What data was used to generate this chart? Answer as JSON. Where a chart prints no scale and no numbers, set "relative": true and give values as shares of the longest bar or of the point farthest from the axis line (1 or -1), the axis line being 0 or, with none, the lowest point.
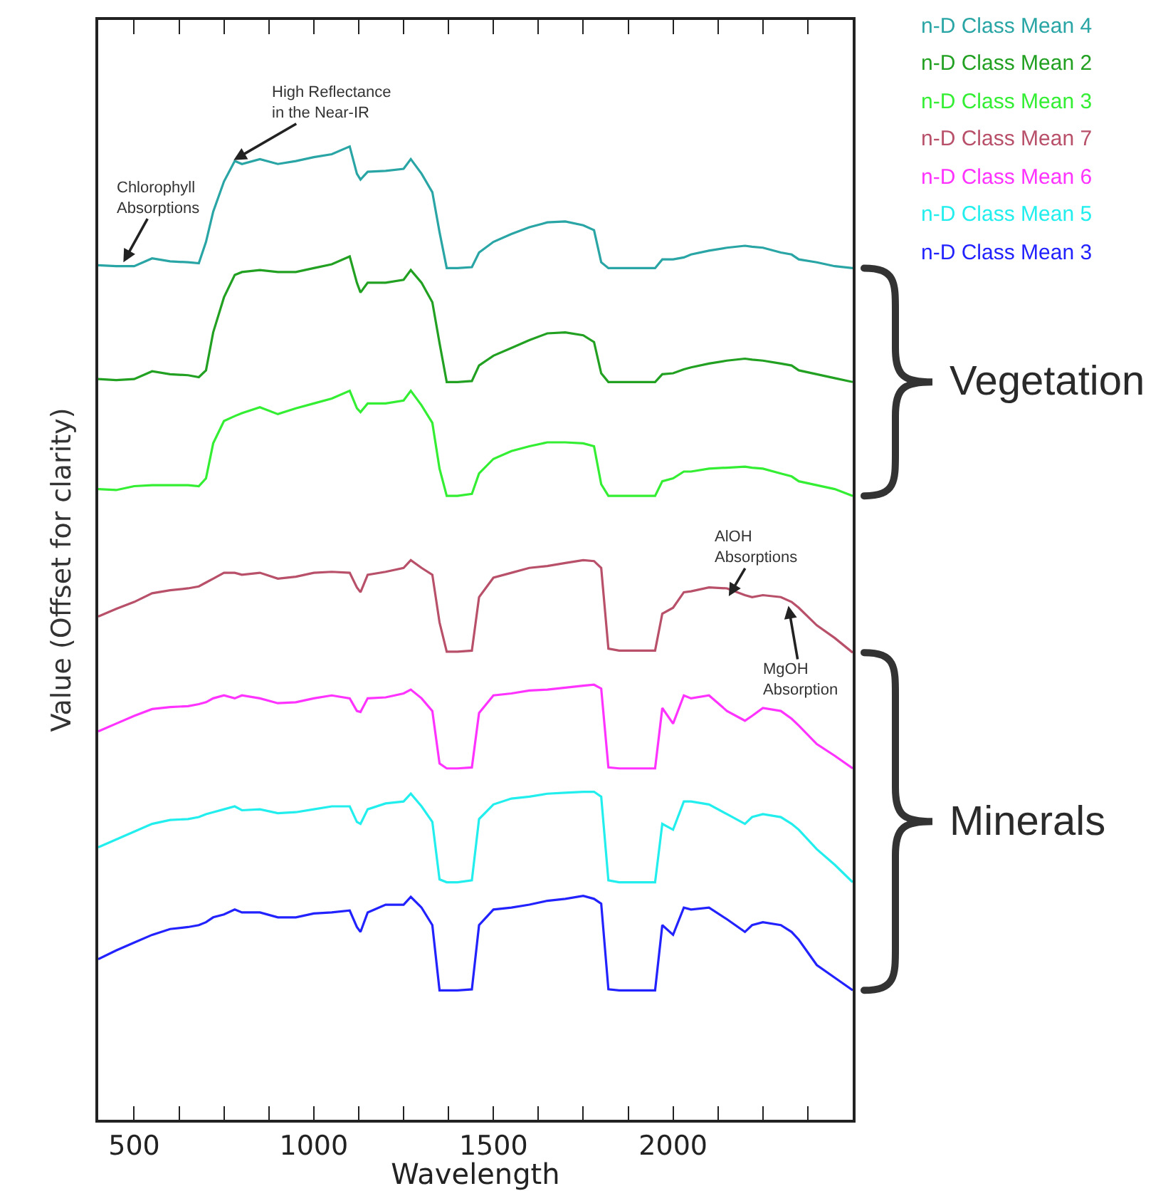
{
  "chart_data": {
    "type": "line",
    "relative": true,
    "xlabel": "Wavelength",
    "ylabel": "Value (Offset for clarity)",
    "xlim": [
      400,
      2500
    ],
    "xticks": [
      500,
      {
        "value": 625,
        "label": null
      },
      {
        "value": 750,
        "label": null
      },
      {
        "value": 875,
        "label": null
      },
      1000,
      {
        "value": 1125,
        "label": null
      },
      {
        "value": 1250,
        "label": null
      },
      {
        "value": 1375,
        "label": null
      },
      1500,
      {
        "value": 1625,
        "label": null
      },
      {
        "value": 1750,
        "label": null
      },
      {
        "value": 1875,
        "label": null
      },
      2000,
      {
        "value": 2125,
        "label": null
      },
      {
        "value": 2250,
        "label": null
      },
      {
        "value": 2375,
        "label": null
      }
    ],
    "grid": false,
    "legend": "top right",
    "marker": "none",
    "line_style": "solid",
    "x": [
      400,
      450,
      500,
      550,
      600,
      650,
      680,
      700,
      720,
      750,
      780,
      800,
      850,
      900,
      950,
      1000,
      1050,
      1100,
      1120,
      1130,
      1150,
      1200,
      1250,
      1270,
      1300,
      1330,
      1350,
      1370,
      1400,
      1440,
      1460,
      1500,
      1550,
      1600,
      1650,
      1700,
      1750,
      1780,
      1800,
      1820,
      1850,
      1900,
      1950,
      1970,
      2000,
      2030,
      2050,
      2100,
      2150,
      2200,
      2220,
      2250,
      2300,
      2330,
      2350,
      2400,
      2450,
      2500
    ],
    "series": [
      {
        "name": "n-D Class Mean 4",
        "color": "#2aa5a5",
        "values": [
          0.878,
          0.877,
          0.877,
          0.885,
          0.882,
          0.881,
          0.88,
          0.902,
          0.933,
          0.964,
          0.985,
          0.982,
          0.987,
          0.982,
          0.985,
          0.989,
          0.992,
          1,
          0.972,
          0.966,
          0.974,
          0.975,
          0.977,
          0.987,
          0.972,
          0.953,
          0.912,
          0.875,
          0.875,
          0.876,
          0.891,
          0.902,
          0.91,
          0.917,
          0.922,
          0.923,
          0.919,
          0.914,
          0.881,
          0.875,
          0.875,
          0.875,
          0.875,
          0.884,
          0.884,
          0.886,
          0.889,
          0.893,
          0.896,
          0.898,
          0.897,
          0.896,
          0.891,
          0.889,
          0.884,
          0.881,
          0.877,
          0.875
        ]
      },
      {
        "name": "n-D Class Mean 2",
        "color": "#22a022",
        "values": [
          0.761,
          0.76,
          0.761,
          0.769,
          0.766,
          0.765,
          0.763,
          0.77,
          0.809,
          0.845,
          0.868,
          0.871,
          0.873,
          0.871,
          0.871,
          0.875,
          0.879,
          0.887,
          0.86,
          0.85,
          0.86,
          0.86,
          0.863,
          0.873,
          0.86,
          0.84,
          0.798,
          0.758,
          0.758,
          0.759,
          0.775,
          0.785,
          0.793,
          0.801,
          0.808,
          0.809,
          0.806,
          0.799,
          0.767,
          0.758,
          0.758,
          0.758,
          0.758,
          0.766,
          0.767,
          0.771,
          0.773,
          0.777,
          0.78,
          0.782,
          0.781,
          0.78,
          0.777,
          0.775,
          0.77,
          0.766,
          0.762,
          0.758
        ]
      },
      {
        "name": "n-D Class Mean 3",
        "color": "#33ee33",
        "values": [
          0.648,
          0.647,
          0.651,
          0.652,
          0.652,
          0.652,
          0.651,
          0.659,
          0.695,
          0.718,
          0.723,
          0.726,
          0.732,
          0.725,
          0.731,
          0.736,
          0.741,
          0.749,
          0.731,
          0.727,
          0.736,
          0.736,
          0.739,
          0.749,
          0.734,
          0.716,
          0.669,
          0.641,
          0.641,
          0.643,
          0.664,
          0.679,
          0.687,
          0.692,
          0.696,
          0.696,
          0.695,
          0.692,
          0.653,
          0.641,
          0.641,
          0.641,
          0.641,
          0.656,
          0.659,
          0.666,
          0.666,
          0.669,
          0.67,
          0.671,
          0.67,
          0.669,
          0.664,
          0.661,
          0.656,
          0.652,
          0.648,
          0.641
        ]
      },
      {
        "name": "n-D Class Mean 7",
        "color": "#b8506a",
        "values": [
          0.517,
          0.525,
          0.532,
          0.541,
          0.544,
          0.546,
          0.548,
          0.552,
          0.556,
          0.562,
          0.562,
          0.56,
          0.562,
          0.556,
          0.558,
          0.562,
          0.563,
          0.562,
          0.547,
          0.542,
          0.56,
          0.563,
          0.567,
          0.575,
          0.567,
          0.56,
          0.511,
          0.481,
          0.481,
          0.482,
          0.537,
          0.557,
          0.562,
          0.567,
          0.569,
          0.572,
          0.575,
          0.574,
          0.567,
          0.484,
          0.482,
          0.482,
          0.482,
          0.52,
          0.526,
          0.542,
          0.543,
          0.547,
          0.546,
          0.539,
          0.537,
          0.539,
          0.537,
          0.532,
          0.526,
          0.508,
          0.495,
          0.48
        ]
      },
      {
        "name": "n-D Class Mean 6",
        "color": "#ff33ff",
        "values": [
          0.399,
          0.407,
          0.415,
          0.422,
          0.424,
          0.425,
          0.427,
          0.429,
          0.433,
          0.436,
          0.433,
          0.436,
          0.433,
          0.428,
          0.429,
          0.433,
          0.436,
          0.433,
          0.42,
          0.419,
          0.433,
          0.434,
          0.438,
          0.442,
          0.433,
          0.42,
          0.366,
          0.361,
          0.361,
          0.362,
          0.418,
          0.436,
          0.438,
          0.441,
          0.442,
          0.444,
          0.446,
          0.447,
          0.443,
          0.362,
          0.361,
          0.361,
          0.361,
          0.423,
          0.407,
          0.436,
          0.433,
          0.436,
          0.42,
          0.41,
          0.415,
          0.423,
          0.42,
          0.412,
          0.405,
          0.386,
          0.374,
          0.361
        ]
      },
      {
        "name": "n-D Class Mean 5",
        "color": "#22eeee",
        "values": [
          0.28,
          0.288,
          0.296,
          0.304,
          0.308,
          0.309,
          0.311,
          0.314,
          0.316,
          0.319,
          0.322,
          0.318,
          0.319,
          0.315,
          0.316,
          0.319,
          0.322,
          0.322,
          0.306,
          0.304,
          0.319,
          0.325,
          0.327,
          0.335,
          0.322,
          0.306,
          0.247,
          0.244,
          0.244,
          0.246,
          0.309,
          0.324,
          0.33,
          0.332,
          0.335,
          0.336,
          0.337,
          0.337,
          0.332,
          0.246,
          0.244,
          0.244,
          0.244,
          0.304,
          0.298,
          0.327,
          0.327,
          0.324,
          0.314,
          0.304,
          0.311,
          0.314,
          0.311,
          0.304,
          0.298,
          0.278,
          0.262,
          0.244
        ]
      },
      {
        "name": "n-D Class Mean 3",
        "color": "#2222ff",
        "values": [
          0.165,
          0.174,
          0.182,
          0.19,
          0.196,
          0.198,
          0.2,
          0.203,
          0.208,
          0.211,
          0.216,
          0.213,
          0.213,
          0.208,
          0.208,
          0.212,
          0.213,
          0.215,
          0.198,
          0.193,
          0.213,
          0.221,
          0.221,
          0.229,
          0.218,
          0.2,
          0.133,
          0.133,
          0.133,
          0.134,
          0.2,
          0.216,
          0.218,
          0.221,
          0.225,
          0.227,
          0.23,
          0.227,
          0.222,
          0.134,
          0.133,
          0.133,
          0.133,
          0.2,
          0.19,
          0.218,
          0.216,
          0.218,
          0.206,
          0.193,
          0.2,
          0.203,
          0.2,
          0.193,
          0.185,
          0.159,
          0.146,
          0.133
        ]
      }
    ],
    "annotations": [
      {
        "text": "Chlorophyll\nAbsorptions",
        "x": 470,
        "y": 0.881
      },
      {
        "text": "High Reflectance\nin the Near-IR",
        "x": 777,
        "y": 0.986
      },
      {
        "text": "AlOH\nAbsorptions",
        "x": 2155,
        "y": 0.538
      },
      {
        "text": "MgOH\nAbsorption",
        "x": 2321,
        "y": 0.528
      },
      "Vegetation",
      "Minerals"
    ]
  }
}
